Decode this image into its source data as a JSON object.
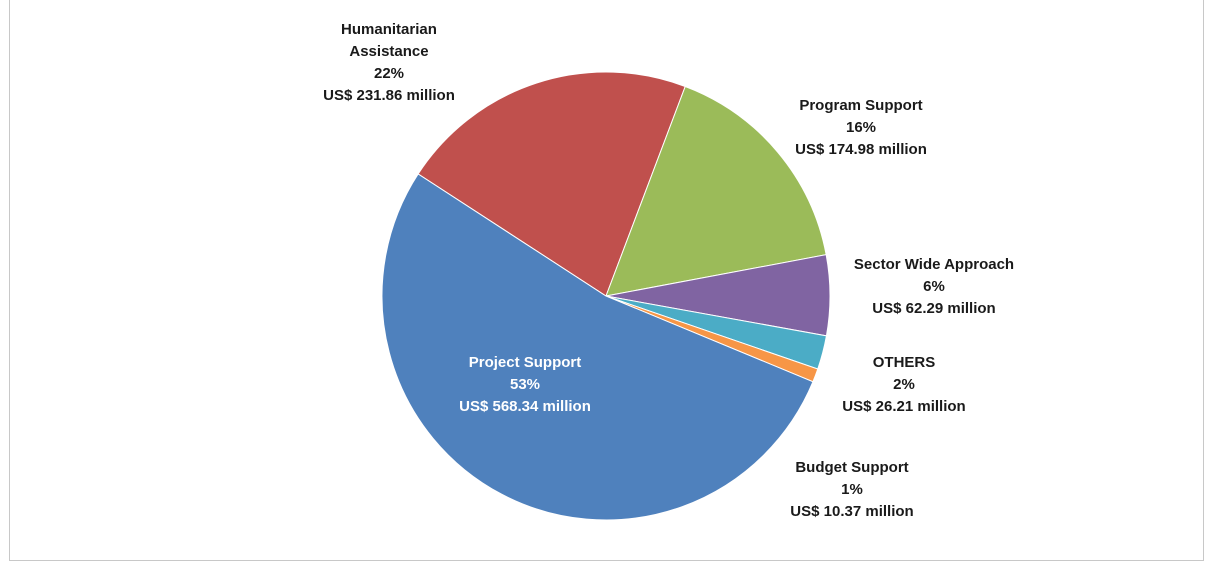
{
  "chart_data": {
    "type": "pie",
    "slices": [
      {
        "name": "Project Support",
        "percent_label": "53%",
        "amount_label": "US$ 568.34 million",
        "value": 568.34,
        "color": "#4f81bd"
      },
      {
        "name": "Humanitarian Assistance",
        "percent_label": "22%",
        "amount_label": "US$ 231.86 million",
        "value": 231.86,
        "color": "#c0504d"
      },
      {
        "name": "Program Support",
        "percent_label": "16%",
        "amount_label": "US$ 174.98 million",
        "value": 174.98,
        "color": "#9bbb59"
      },
      {
        "name": "Sector Wide Approach",
        "percent_label": "6%",
        "amount_label": "US$ 62.29 million",
        "value": 62.29,
        "color": "#8064a2"
      },
      {
        "name": "OTHERS",
        "percent_label": "2%",
        "amount_label": "US$ 26.21 million",
        "value": 26.21,
        "color": "#4bacc6"
      },
      {
        "name": "Budget Support",
        "percent_label": "1%",
        "amount_label": "US$ 10.37 million",
        "value": 10.37,
        "color": "#f79646"
      }
    ],
    "title": "",
    "legend": "none"
  }
}
